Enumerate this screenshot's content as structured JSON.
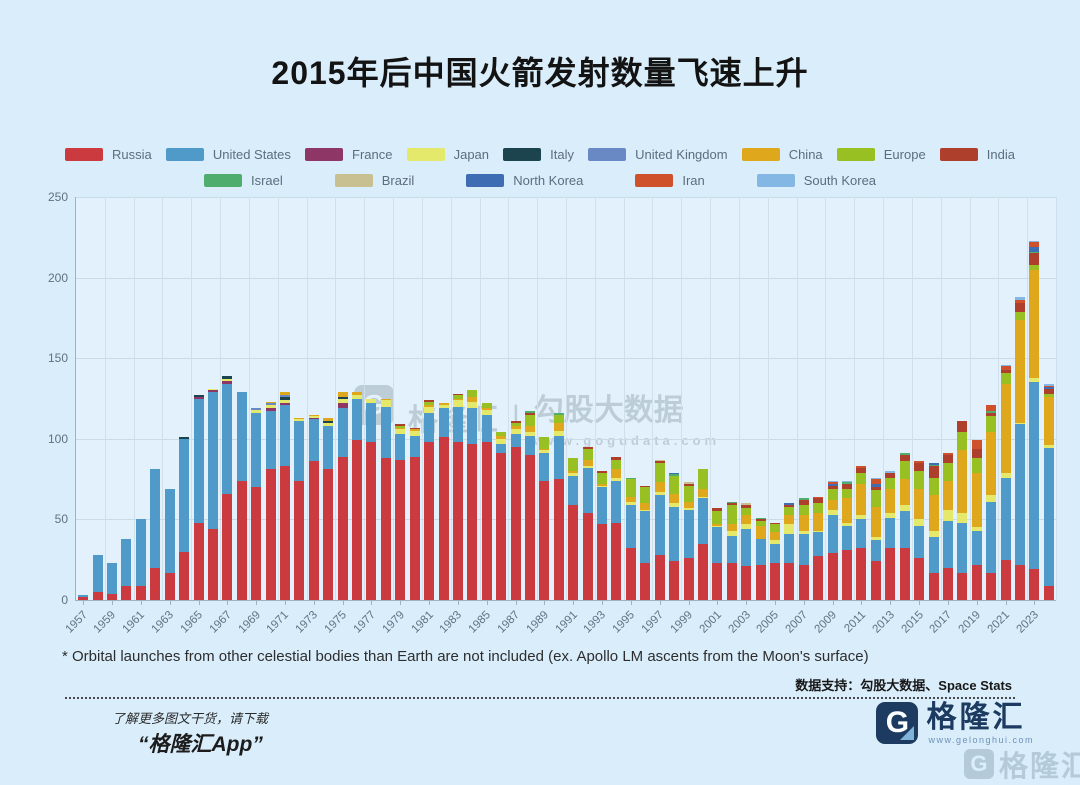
{
  "title": "2015年后中国火箭发射数量飞速上升",
  "watermark": {
    "icon_letter": "G",
    "brand": "格隆汇",
    "separator": "|",
    "product": "勾股大数据",
    "url": "www.gogudata.com"
  },
  "footnote": "* Orbital launches from other celestial bodies than Earth are not included (ex. Apollo LM ascents from the Moon's surface)",
  "data_support": "数据支持：勾股大数据、Space Stats",
  "promo": {
    "line1": "了解更多图文干货，请下载",
    "line2": "“格隆汇App”"
  },
  "brand_footer": {
    "icon_letter": "G",
    "name": "格隆汇",
    "url": "www.gelonghui.com"
  },
  "corner_watermark": {
    "icon_letter": "G",
    "name": "格隆汇"
  },
  "chart_data": {
    "type": "bar",
    "stacked": true,
    "title": "2015年后中国火箭发射数量飞速上升",
    "x_start": 1957,
    "x_end": 2024,
    "x_tick_labels": [
      "1957",
      "1959",
      "1961",
      "1963",
      "1965",
      "1967",
      "1969",
      "1971",
      "1973",
      "1975",
      "1977",
      "1979",
      "1981",
      "1983",
      "1985",
      "1987",
      "1989",
      "1991",
      "1993",
      "1995",
      "1997",
      "1999",
      "2001",
      "2003",
      "2005",
      "2007",
      "2009",
      "2011",
      "2013",
      "2015",
      "2017",
      "2019",
      "2021",
      "2023"
    ],
    "ylim": [
      0,
      250
    ],
    "y_ticks": [
      0,
      50,
      100,
      150,
      200,
      250
    ],
    "grid": true,
    "legend_position": "top",
    "legend_row_split": 9,
    "series": [
      {
        "name": "Russia",
        "color": "#cb3a3f",
        "values": {
          "1957": 2,
          "1958": 5,
          "1959": 4,
          "1960": 9,
          "1961": 9,
          "1962": 20,
          "1963": 17,
          "1964": 30,
          "1965": 48,
          "1966": 44,
          "1967": 66,
          "1968": 74,
          "1969": 70,
          "1970": 81,
          "1971": 83,
          "1972": 74,
          "1973": 86,
          "1974": 81,
          "1975": 89,
          "1976": 99,
          "1977": 98,
          "1978": 88,
          "1979": 87,
          "1980": 89,
          "1981": 98,
          "1982": 101,
          "1983": 98,
          "1984": 97,
          "1985": 98,
          "1986": 91,
          "1987": 95,
          "1988": 90,
          "1989": 74,
          "1990": 75,
          "1991": 59,
          "1992": 54,
          "1993": 47,
          "1994": 48,
          "1995": 32,
          "1996": 23,
          "1997": 28,
          "1998": 24,
          "1999": 26,
          "2000": 35,
          "2001": 23,
          "2002": 23,
          "2003": 21,
          "2004": 22,
          "2005": 23,
          "2006": 23,
          "2007": 22,
          "2008": 27,
          "2009": 29,
          "2010": 31,
          "2011": 32,
          "2012": 24,
          "2013": 32,
          "2014": 32,
          "2015": 26,
          "2016": 17,
          "2017": 20,
          "2018": 17,
          "2019": 22,
          "2020": 17,
          "2021": 25,
          "2022": 22,
          "2023": 19,
          "2024": 9
        }
      },
      {
        "name": "United States",
        "color": "#4f9ac8",
        "values": {
          "1957": 1,
          "1958": 23,
          "1959": 19,
          "1960": 29,
          "1961": 41,
          "1962": 61,
          "1963": 52,
          "1964": 70,
          "1965": 77,
          "1966": 85,
          "1967": 68,
          "1968": 55,
          "1969": 46,
          "1970": 36,
          "1971": 38,
          "1972": 37,
          "1973": 26,
          "1974": 27,
          "1975": 30,
          "1976": 26,
          "1977": 24,
          "1978": 32,
          "1979": 16,
          "1980": 13,
          "1981": 18,
          "1982": 18,
          "1983": 22,
          "1984": 22,
          "1985": 17,
          "1986": 6,
          "1987": 8,
          "1988": 12,
          "1989": 17,
          "1990": 27,
          "1991": 18,
          "1992": 28,
          "1993": 23,
          "1994": 26,
          "1995": 27,
          "1996": 32,
          "1997": 37,
          "1998": 34,
          "1999": 30,
          "2000": 28,
          "2001": 22,
          "2002": 17,
          "2003": 23,
          "2004": 16,
          "2005": 12,
          "2006": 18,
          "2007": 19,
          "2008": 15,
          "2009": 24,
          "2010": 15,
          "2011": 18,
          "2012": 13,
          "2013": 19,
          "2014": 23,
          "2015": 20,
          "2016": 22,
          "2017": 29,
          "2018": 31,
          "2019": 21,
          "2020": 44,
          "2021": 51,
          "2022": 87,
          "2023": 116,
          "2024": 85
        }
      },
      {
        "name": "France",
        "color": "#8e3766",
        "values": {
          "1965": 1,
          "1966": 1,
          "1967": 2,
          "1970": 2,
          "1971": 1,
          "1973": 1,
          "1975": 3
        }
      },
      {
        "name": "Japan",
        "color": "#e4e96b",
        "values": {
          "1966": 1,
          "1967": 1,
          "1969": 2,
          "1970": 2,
          "1971": 2,
          "1972": 1,
          "1973": 1,
          "1974": 2,
          "1975": 3,
          "1976": 2,
          "1977": 3,
          "1978": 4,
          "1979": 3,
          "1980": 3,
          "1981": 4,
          "1982": 2,
          "1983": 4,
          "1984": 4,
          "1985": 3,
          "1986": 3,
          "1987": 3,
          "1988": 2,
          "1989": 2,
          "1990": 3,
          "1991": 2,
          "1992": 1,
          "1993": 1,
          "1994": 2,
          "1995": 2,
          "1996": 1,
          "1997": 2,
          "1998": 2,
          "1999": 1,
          "2000": 1,
          "2001": 1,
          "2002": 3,
          "2003": 3,
          "2005": 2,
          "2006": 6,
          "2007": 2,
          "2008": 1,
          "2009": 3,
          "2010": 2,
          "2011": 3,
          "2012": 2,
          "2013": 3,
          "2014": 4,
          "2015": 4,
          "2016": 4,
          "2017": 7,
          "2018": 6,
          "2019": 2,
          "2020": 4,
          "2021": 3,
          "2022": 1,
          "2023": 3,
          "2024": 2
        }
      },
      {
        "name": "Italy",
        "color": "#1b444f",
        "values": {
          "1964": 1,
          "1965": 1,
          "1967": 2,
          "1971": 2,
          "1974": 1,
          "1975": 1
        }
      },
      {
        "name": "United Kingdom",
        "color": "#6889c4",
        "values": {
          "1969": 1,
          "1970": 1,
          "1971": 1
        }
      },
      {
        "name": "China",
        "color": "#dfa71b",
        "values": {
          "1970": 1,
          "1971": 2,
          "1972": 1,
          "1973": 1,
          "1974": 2,
          "1975": 3,
          "1976": 2,
          "1978": 1,
          "1979": 1,
          "1980": 1,
          "1981": 1,
          "1982": 1,
          "1983": 1,
          "1984": 3,
          "1985": 1,
          "1986": 2,
          "1987": 2,
          "1988": 4,
          "1989": 1,
          "1990": 5,
          "1991": 1,
          "1992": 4,
          "1993": 1,
          "1994": 5,
          "1995": 3,
          "1996": 4,
          "1997": 6,
          "1998": 6,
          "1999": 4,
          "2000": 5,
          "2001": 1,
          "2002": 4,
          "2003": 6,
          "2004": 8,
          "2005": 5,
          "2006": 6,
          "2007": 10,
          "2008": 11,
          "2009": 6,
          "2010": 15,
          "2011": 19,
          "2012": 19,
          "2013": 15,
          "2014": 16,
          "2015": 19,
          "2016": 22,
          "2017": 18,
          "2018": 39,
          "2019": 34,
          "2020": 39,
          "2021": 55,
          "2022": 64,
          "2023": 67,
          "2024": 30
        }
      },
      {
        "name": "Europe",
        "color": "#98c023",
        "values": {
          "1979": 1,
          "1981": 2,
          "1983": 2,
          "1984": 4,
          "1985": 3,
          "1986": 2,
          "1987": 2,
          "1988": 7,
          "1989": 7,
          "1990": 5,
          "1991": 8,
          "1992": 7,
          "1993": 7,
          "1994": 6,
          "1995": 11,
          "1996": 10,
          "1997": 12,
          "1998": 11,
          "1999": 10,
          "2000": 12,
          "2001": 8,
          "2002": 12,
          "2003": 4,
          "2004": 3,
          "2005": 5,
          "2006": 5,
          "2007": 6,
          "2008": 6,
          "2009": 7,
          "2010": 6,
          "2011": 7,
          "2012": 10,
          "2013": 7,
          "2014": 11,
          "2015": 11,
          "2016": 11,
          "2017": 11,
          "2018": 11,
          "2019": 9,
          "2020": 10,
          "2021": 7,
          "2022": 5,
          "2023": 3,
          "2024": 2
        }
      },
      {
        "name": "India",
        "color": "#ae3f2d",
        "values": {
          "1979": 1,
          "1980": 1,
          "1981": 1,
          "1983": 1,
          "1987": 1,
          "1988": 1,
          "1992": 1,
          "1993": 1,
          "1994": 2,
          "1996": 1,
          "1997": 1,
          "1999": 1,
          "2001": 2,
          "2002": 1,
          "2003": 2,
          "2004": 1,
          "2005": 1,
          "2006": 1,
          "2007": 3,
          "2008": 3,
          "2009": 2,
          "2010": 3,
          "2011": 3,
          "2012": 2,
          "2013": 3,
          "2014": 4,
          "2015": 5,
          "2016": 7,
          "2017": 5,
          "2018": 7,
          "2019": 6,
          "2020": 2,
          "2021": 2,
          "2022": 5,
          "2023": 7,
          "2024": 3
        }
      },
      {
        "name": "Israel",
        "color": "#4fae6d",
        "values": {
          "1988": 1,
          "1990": 1,
          "1995": 1,
          "1998": 1,
          "2002": 1,
          "2004": 1,
          "2007": 1,
          "2010": 1,
          "2014": 1,
          "2016": 1,
          "2020": 1,
          "2023": 1
        }
      },
      {
        "name": "Brazil",
        "color": "#c9c091",
        "values": {
          "1997": 1,
          "1999": 1,
          "2003": 1
        }
      },
      {
        "name": "North Korea",
        "color": "#3e6db3",
        "values": {
          "1998": 1,
          "2006": 1,
          "2009": 1,
          "2012": 2,
          "2016": 1,
          "2023": 3,
          "2024": 1
        }
      },
      {
        "name": "Iran",
        "color": "#cf512b",
        "values": {
          "2008": 1,
          "2009": 1,
          "2011": 1,
          "2012": 3,
          "2015": 1,
          "2017": 1,
          "2019": 5,
          "2020": 4,
          "2021": 2,
          "2022": 2,
          "2023": 3,
          "2024": 1
        }
      },
      {
        "name": "South Korea",
        "color": "#84b7e4",
        "values": {
          "2009": 1,
          "2010": 1,
          "2012": 1,
          "2013": 1,
          "2021": 1,
          "2022": 2,
          "2023": 1,
          "2024": 1
        }
      }
    ]
  }
}
